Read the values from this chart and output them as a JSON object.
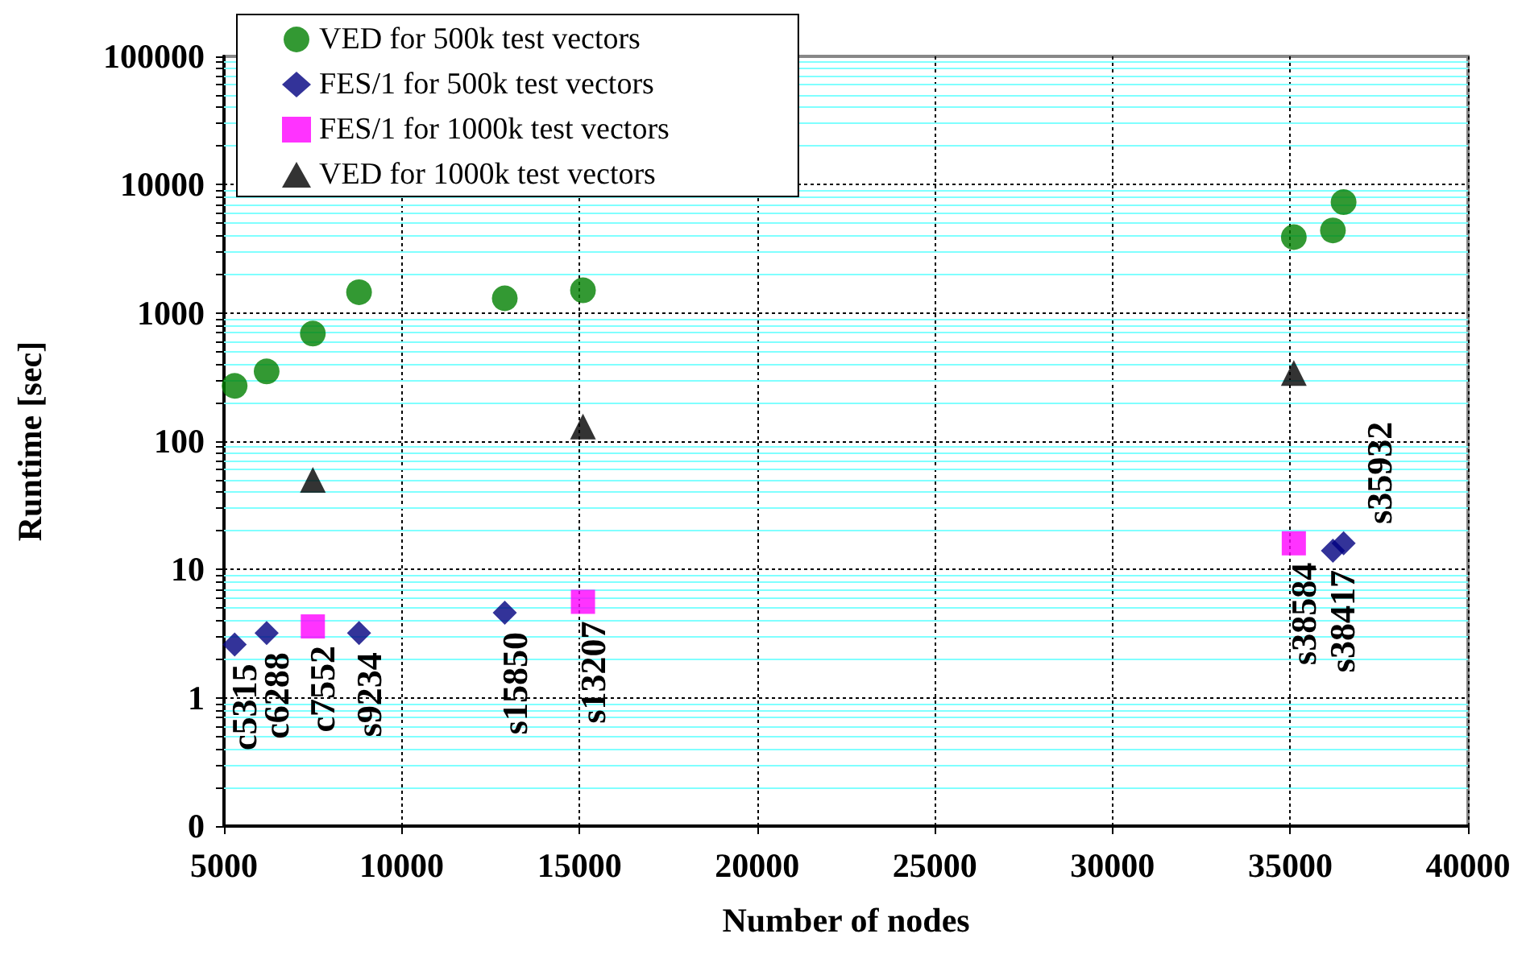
{
  "chart_data": {
    "type": "scatter",
    "xlabel": "Number of nodes",
    "ylabel": "Runtime [sec]",
    "xlim": [
      5000,
      40000
    ],
    "xticks": [
      5000,
      10000,
      15000,
      20000,
      25000,
      30000,
      35000,
      40000
    ],
    "ylim": [
      0.1,
      100000
    ],
    "yticks": [
      {
        "value": 0.1,
        "label": "0"
      },
      {
        "value": 0.2,
        "label": null
      },
      {
        "value": 0.3,
        "label": null
      },
      {
        "value": 0.4,
        "label": null
      },
      {
        "value": 0.5,
        "label": null
      },
      {
        "value": 0.6,
        "label": null
      },
      {
        "value": 0.7,
        "label": null
      },
      {
        "value": 0.8,
        "label": null
      },
      {
        "value": 0.9,
        "label": null
      },
      1,
      {
        "value": 2,
        "label": null
      },
      {
        "value": 3,
        "label": null
      },
      {
        "value": 4,
        "label": null
      },
      {
        "value": 5,
        "label": null
      },
      {
        "value": 6,
        "label": null
      },
      {
        "value": 7,
        "label": null
      },
      {
        "value": 8,
        "label": null
      },
      {
        "value": 9,
        "label": null
      },
      10,
      {
        "value": 20,
        "label": null
      },
      {
        "value": 30,
        "label": null
      },
      {
        "value": 40,
        "label": null
      },
      {
        "value": 50,
        "label": null
      },
      {
        "value": 60,
        "label": null
      },
      {
        "value": 70,
        "label": null
      },
      {
        "value": 80,
        "label": null
      },
      {
        "value": 90,
        "label": null
      },
      100,
      {
        "value": 200,
        "label": null
      },
      {
        "value": 300,
        "label": null
      },
      {
        "value": 400,
        "label": null
      },
      {
        "value": 500,
        "label": null
      },
      {
        "value": 600,
        "label": null
      },
      {
        "value": 700,
        "label": null
      },
      {
        "value": 800,
        "label": null
      },
      {
        "value": 900,
        "label": null
      },
      1000,
      {
        "value": 2000,
        "label": null
      },
      {
        "value": 3000,
        "label": null
      },
      {
        "value": 4000,
        "label": null
      },
      {
        "value": 5000,
        "label": null
      },
      {
        "value": 6000,
        "label": null
      },
      {
        "value": 7000,
        "label": null
      },
      {
        "value": 8000,
        "label": null
      },
      {
        "value": 9000,
        "label": null
      },
      10000,
      {
        "value": 20000,
        "label": null
      },
      {
        "value": 30000,
        "label": null
      },
      {
        "value": 40000,
        "label": null
      },
      {
        "value": 50000,
        "label": null
      },
      {
        "value": 60000,
        "label": null
      },
      {
        "value": 70000,
        "label": null
      },
      {
        "value": 80000,
        "label": null
      },
      {
        "value": 90000,
        "label": null
      },
      100000
    ],
    "log": "y",
    "grid": true,
    "legend": "top left",
    "series": [
      {
        "name": "VED for 500k test vectors",
        "color": "#008000",
        "marker": "circle",
        "x": [
          5300,
          6200,
          7500,
          8800,
          12900,
          15100,
          35100,
          36200,
          36500
        ],
        "values": [
          270,
          350,
          690,
          1450,
          1300,
          1500,
          3900,
          4400,
          7300
        ]
      },
      {
        "name": "FES/1 for 500k test vectors",
        "color": "#000080",
        "marker": "diamond",
        "x": [
          5300,
          6200,
          7500,
          8800,
          12900,
          36200,
          36500
        ],
        "values": [
          2.6,
          3.2,
          null,
          3.2,
          4.6,
          14,
          16
        ]
      },
      {
        "name": "FES/1 for 1000k test vectors",
        "color": "#ff00ff",
        "marker": "square",
        "x": [
          7500,
          15100,
          35100
        ],
        "values": [
          3.6,
          5.6,
          16
        ]
      },
      {
        "name": "VED for 1000k test vectors",
        "color": "#000000",
        "marker": "triangle",
        "x": [
          7500,
          15100,
          35100
        ],
        "values": [
          50,
          130,
          340
        ]
      }
    ],
    "annotations": [
      {
        "text": "c5315",
        "x": 5300,
        "y": 2.6
      },
      {
        "text": "c6288",
        "x": 6200,
        "y": 3.2
      },
      {
        "text": "c7552",
        "x": 7500,
        "y": 3.6
      },
      {
        "text": "s9234",
        "x": 8800,
        "y": 3.2
      },
      {
        "text": "s15850",
        "x": 12900,
        "y": 4.6
      },
      {
        "text": "s13207",
        "x": 15100,
        "y": 5.6
      },
      {
        "text": "s38584",
        "x": 35100,
        "y": 16
      },
      {
        "text": "s38417",
        "x": 36200,
        "y": 14
      },
      {
        "text": "s35932",
        "x": 36500,
        "y": 16
      }
    ]
  }
}
